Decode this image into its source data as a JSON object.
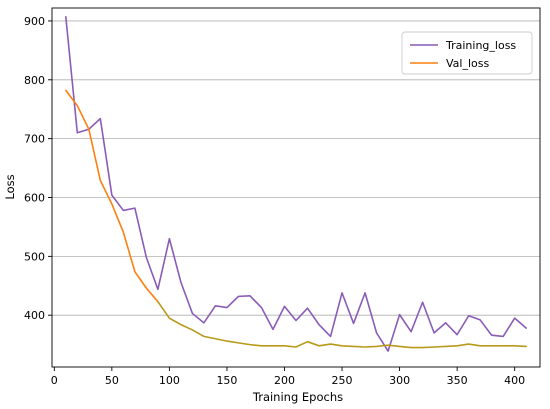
{
  "chart_data": {
    "type": "line",
    "title": "",
    "xlabel": "Training Epochs",
    "ylabel": "Loss",
    "xlim": [
      -2,
      422
    ],
    "ylim": [
      312,
      922
    ],
    "xticks": [
      0,
      50,
      100,
      150,
      200,
      250,
      300,
      350,
      400
    ],
    "yticks": [
      400,
      500,
      600,
      700,
      800,
      900
    ],
    "grid": "horizontal",
    "legend_position": "top-right",
    "series": [
      {
        "name": "Training_loss",
        "color": "#8a5cb8",
        "x": [
          10,
          20,
          30,
          40,
          50,
          60,
          70,
          80,
          90,
          100,
          110,
          120,
          130,
          140,
          150,
          160,
          170,
          180,
          190,
          200,
          210,
          220,
          230,
          240,
          250,
          260,
          270,
          280,
          290,
          300,
          310,
          320,
          330,
          340,
          350,
          360,
          370,
          380,
          390,
          400,
          410
        ],
        "y": [
          907,
          710,
          716,
          734,
          604,
          578,
          582,
          498,
          444,
          530,
          456,
          403,
          387,
          416,
          413,
          432,
          433,
          413,
          376,
          415,
          391,
          412,
          384,
          364,
          438,
          386,
          438,
          370,
          339,
          401,
          372,
          422,
          370,
          387,
          367,
          399,
          392,
          366,
          364,
          395,
          378
        ]
      },
      {
        "name": "Val_loss",
        "color": "#ff7f0e",
        "x": [
          10,
          20,
          30,
          40,
          50,
          60,
          70,
          80,
          90,
          100,
          110,
          120,
          130,
          140,
          150,
          160,
          170,
          180,
          190,
          200,
          210,
          220,
          230,
          240,
          250,
          260,
          270,
          280,
          290,
          300,
          310,
          320,
          330,
          340,
          350,
          360,
          370,
          380,
          390,
          400,
          410
        ],
        "y": [
          782,
          756,
          716,
          629,
          589,
          541,
          474,
          446,
          423,
          395,
          384,
          375,
          364,
          360,
          356,
          353,
          350,
          348,
          348,
          348,
          346,
          355,
          348,
          351,
          348,
          347,
          346,
          347,
          349,
          347,
          345,
          345,
          346,
          347,
          348,
          351,
          348,
          348,
          348,
          348,
          347
        ]
      }
    ]
  },
  "colors": {
    "grid": "#b0b0b0",
    "axis": "#000000",
    "overlap": "#b89a1a"
  }
}
